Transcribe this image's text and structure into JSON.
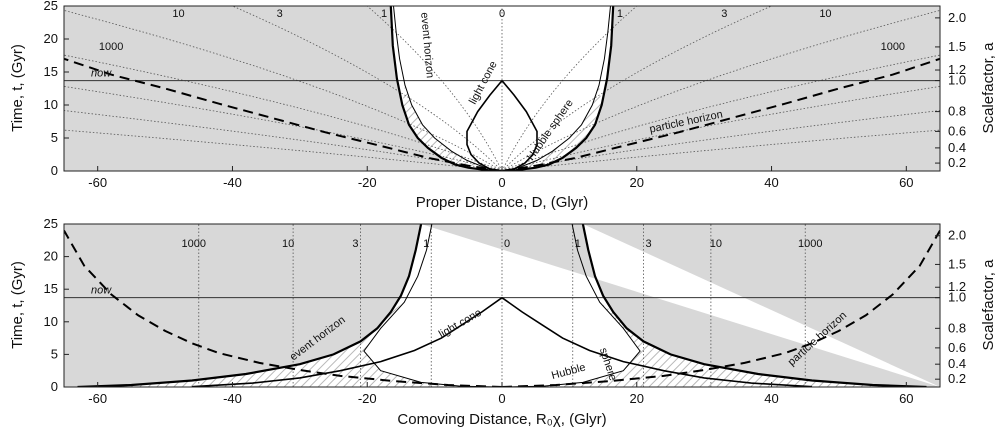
{
  "chart_data": [
    {
      "type": "line",
      "xlabel": "Proper Distance, D, (Glyr)",
      "ylabel": "Time, t, (Gyr)",
      "y2label": "Scalefactor, a",
      "xlim": [
        -65,
        65
      ],
      "ylim": [
        0,
        25
      ],
      "xticks": [
        -60,
        -40,
        -20,
        0,
        20,
        40,
        60
      ],
      "yticks": [
        0,
        5,
        10,
        15,
        20,
        25
      ],
      "y2ticks": [
        {
          "label": "0.2",
          "t": 1.2
        },
        {
          "label": "0.4",
          "t": 3.5
        },
        {
          "label": "0.6",
          "t": 6.0
        },
        {
          "label": "0.8",
          "t": 9.0
        },
        {
          "label": "1.0",
          "t": 13.7
        },
        {
          "label": "1.2",
          "t": 15.3
        },
        {
          "label": "1.5",
          "t": 18.8
        },
        {
          "label": "2.0",
          "t": 23.2
        }
      ],
      "now_t": 13.7,
      "region_colors": {
        "background": "#d8d8d8",
        "inside": "#ffffff",
        "hatch": "#bdbdbd",
        "curve": "#000000"
      },
      "worldline_labels": [
        "10",
        "3",
        "1",
        "0",
        "1",
        "3",
        "10",
        "1000",
        "1000"
      ],
      "labels": {
        "now": "now",
        "light_cone": "light cone",
        "hubble_sphere": "Hubble sphere",
        "event_horizon": "event horizon",
        "particle_horizon": "particle horizon"
      },
      "series": [
        {
          "name": "event horizon",
          "style": "solid-thick",
          "x": [
            0,
            2,
            5,
            7,
            9,
            11,
            12.5,
            13.8,
            14.8,
            15.6,
            16.2,
            16.5
          ],
          "t": [
            0,
            0.1,
            0.5,
            1,
            2,
            3.5,
            5,
            7,
            10,
            14,
            19,
            25
          ]
        },
        {
          "name": "Hubble sphere",
          "style": "solid-thin",
          "x": [
            0,
            2.5,
            5.2,
            7.5,
            10,
            11.8,
            13.4,
            14.4,
            15.2,
            15.7,
            16.1
          ],
          "t": [
            0,
            0.5,
            1.6,
            3,
            5,
            7,
            10,
            13,
            17,
            21,
            25
          ]
        },
        {
          "name": "light cone",
          "style": "solid-medium",
          "x": [
            0,
            1.8,
            3.6,
            5.2,
            5.2,
            4.6,
            3.4,
            1.8,
            0
          ],
          "t": [
            13.7,
            11.5,
            9,
            6,
            4,
            2.5,
            1.2,
            0.3,
            0
          ]
        },
        {
          "name": "particle horizon",
          "style": "dashed",
          "x": [
            0,
            5,
            11,
            18,
            26,
            34,
            42,
            50,
            58,
            65
          ],
          "t": [
            0,
            0.8,
            2,
            3.8,
            5.8,
            8,
            10.2,
            12.5,
            14.6,
            17
          ]
        }
      ]
    },
    {
      "type": "line",
      "xlabel": "Comoving Distance, R₀χ, (Glyr)",
      "ylabel": "Time, t, (Gyr)",
      "y2label": "Scalefactor, a",
      "xlim": [
        -65,
        65
      ],
      "ylim": [
        0,
        25
      ],
      "xticks": [
        -60,
        -40,
        -20,
        0,
        20,
        40,
        60
      ],
      "yticks": [
        0,
        5,
        10,
        15,
        20,
        25
      ],
      "y2ticks": [
        {
          "label": "0.2",
          "t": 1.2
        },
        {
          "label": "0.4",
          "t": 3.5
        },
        {
          "label": "0.6",
          "t": 6.0
        },
        {
          "label": "0.8",
          "t": 9.0
        },
        {
          "label": "1.0",
          "t": 13.7
        },
        {
          "label": "1.2",
          "t": 15.3
        },
        {
          "label": "1.5",
          "t": 18.8
        },
        {
          "label": "2.0",
          "t": 23.2
        }
      ],
      "now_t": 13.7,
      "comoving_worldlines": [
        {
          "label": "1000",
          "x": 45
        },
        {
          "label": "10",
          "x": 31
        },
        {
          "label": "3",
          "x": 21
        },
        {
          "label": "1",
          "x": 10.5
        },
        {
          "label": "0",
          "x": 0
        }
      ],
      "labels": {
        "now": "now",
        "light_cone": "light cone",
        "hubble_sphere": [
          "Hubble",
          "sphere"
        ],
        "event_horizon": "event horizon",
        "particle_horizon": "particle horizon"
      },
      "series": [
        {
          "name": "event horizon",
          "style": "solid-thick",
          "x": [
            63,
            55,
            46,
            38,
            30,
            25,
            21,
            18.5,
            16.5,
            15,
            13.8,
            12.8,
            12
          ],
          "t": [
            0,
            0.3,
            1,
            2,
            3.5,
            5,
            7,
            9,
            11.5,
            14,
            17,
            21,
            25
          ]
        },
        {
          "name": "Hubble sphere",
          "style": "solid-thin",
          "x": [
            0,
            6,
            12,
            18,
            20.5,
            18,
            14.5,
            12.5,
            11.2,
            10.4
          ],
          "t": [
            0,
            0.1,
            0.7,
            2.5,
            5.5,
            9,
            13,
            17,
            21,
            25
          ]
        },
        {
          "name": "light cone",
          "style": "solid-medium",
          "x": [
            0,
            3,
            6,
            9,
            13,
            18,
            24,
            30,
            37,
            46
          ],
          "t": [
            13.7,
            11.5,
            9.5,
            7.5,
            5.6,
            3.9,
            2.5,
            1.4,
            0.6,
            0.05
          ]
        },
        {
          "name": "particle horizon",
          "style": "dashed",
          "x": [
            0,
            8,
            16,
            24,
            30,
            36,
            42,
            46,
            50,
            54,
            58,
            62,
            65
          ],
          "t": [
            0,
            0.3,
            0.9,
            1.7,
            2.6,
            3.7,
            5.2,
            6.7,
            8.6,
            11,
            14.2,
            18.6,
            24
          ]
        }
      ]
    }
  ]
}
